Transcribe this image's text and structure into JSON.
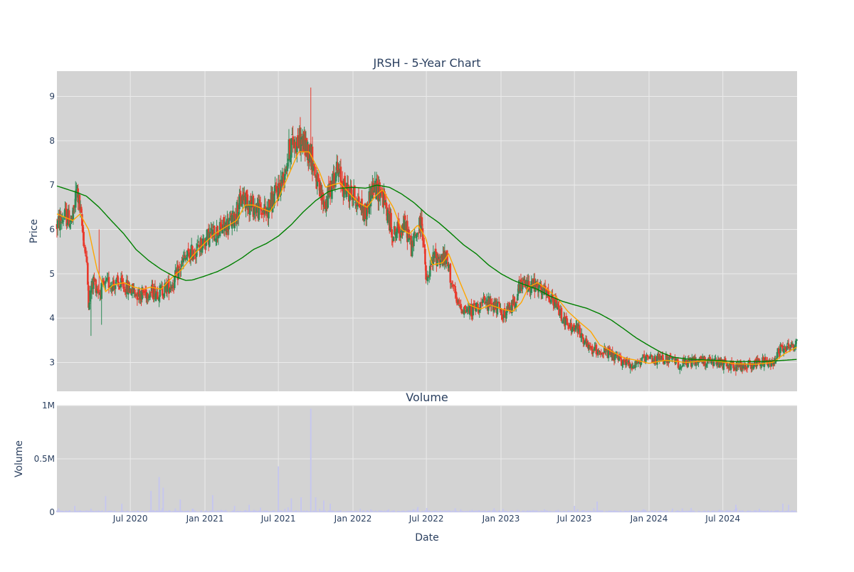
{
  "title": "JRSH - 5-Year Chart",
  "colors": {
    "plot_bg": "#d3d3d3",
    "grid": "#ebebeb",
    "candle_up": "#2e8b57",
    "candle_down": "#e8392c",
    "ma_short": "#ffa500",
    "ma_long": "#008000",
    "volume_bar": "#c5c6f0",
    "text": "#2a3f5f"
  },
  "chart_data": [
    {
      "type": "candlestick",
      "title": "JRSH - 5-Year Chart",
      "ylabel": "Price",
      "ylim": [
        2.35,
        9.57
      ],
      "yticks": [
        3,
        4,
        5,
        6,
        7,
        8,
        9
      ],
      "x_range": [
        "2020-01-02",
        "2024-12-31"
      ],
      "grid": true,
      "series": [
        {
          "name": "",
          "style": "candles",
          "anchor_points": [
            [
              "2020-01-02",
              6.1
            ],
            [
              "2020-01-20",
              6.3
            ],
            [
              "2020-02-10",
              6.2
            ],
            [
              "2020-02-20",
              6.95
            ],
            [
              "2020-03-05",
              6.0
            ],
            [
              "2020-03-15",
              5.3
            ],
            [
              "2020-03-20",
              4.4
            ],
            [
              "2020-04-01",
              4.85
            ],
            [
              "2020-04-15",
              4.6
            ],
            [
              "2020-05-10",
              4.8
            ],
            [
              "2020-06-01",
              4.75
            ],
            [
              "2020-06-20",
              4.7
            ],
            [
              "2020-07-20",
              4.55
            ],
            [
              "2020-08-20",
              4.6
            ],
            [
              "2020-09-15",
              4.6
            ],
            [
              "2020-10-15",
              4.8
            ],
            [
              "2020-11-10",
              5.3
            ],
            [
              "2020-12-15",
              5.6
            ],
            [
              "2021-01-10",
              5.85
            ],
            [
              "2021-02-10",
              6.0
            ],
            [
              "2021-03-10",
              6.2
            ],
            [
              "2021-04-05",
              6.75
            ],
            [
              "2021-05-01",
              6.5
            ],
            [
              "2021-06-01",
              6.4
            ],
            [
              "2021-06-25",
              6.8
            ],
            [
              "2021-07-10",
              7.1
            ],
            [
              "2021-08-01",
              7.95
            ],
            [
              "2021-08-25",
              8.0
            ],
            [
              "2021-09-20",
              7.7
            ],
            [
              "2021-10-10",
              6.8
            ],
            [
              "2021-10-25",
              6.55
            ],
            [
              "2021-11-20",
              7.35
            ],
            [
              "2021-12-10",
              6.95
            ],
            [
              "2022-01-10",
              6.7
            ],
            [
              "2022-02-01",
              6.3
            ],
            [
              "2022-02-15",
              6.9
            ],
            [
              "2022-03-10",
              6.9
            ],
            [
              "2022-04-10",
              5.9
            ],
            [
              "2022-05-10",
              6.1
            ],
            [
              "2022-05-25",
              5.6
            ],
            [
              "2022-06-20",
              6.2
            ],
            [
              "2022-07-01",
              4.75
            ],
            [
              "2022-07-20",
              5.4
            ],
            [
              "2022-08-20",
              5.3
            ],
            [
              "2022-09-15",
              4.3
            ],
            [
              "2022-10-15",
              4.15
            ],
            [
              "2022-11-10",
              4.3
            ],
            [
              "2022-12-10",
              4.35
            ],
            [
              "2023-01-10",
              4.05
            ],
            [
              "2023-02-01",
              4.35
            ],
            [
              "2023-02-20",
              4.75
            ],
            [
              "2023-03-20",
              4.75
            ],
            [
              "2023-04-20",
              4.55
            ],
            [
              "2023-05-20",
              4.25
            ],
            [
              "2023-06-15",
              3.8
            ],
            [
              "2023-07-10",
              3.75
            ],
            [
              "2023-08-05",
              3.3
            ],
            [
              "2023-09-10",
              3.25
            ],
            [
              "2023-10-20",
              3.05
            ],
            [
              "2023-11-20",
              2.95
            ],
            [
              "2023-12-20",
              3.05
            ],
            [
              "2024-02-10",
              3.1
            ],
            [
              "2024-03-20",
              2.95
            ],
            [
              "2024-05-01",
              3.05
            ],
            [
              "2024-06-10",
              3.0
            ],
            [
              "2024-07-10",
              2.95
            ],
            [
              "2024-08-20",
              2.9
            ],
            [
              "2024-09-20",
              3.0
            ],
            [
              "2024-11-01",
              3.0
            ],
            [
              "2024-11-20",
              3.35
            ],
            [
              "2024-12-31",
              3.4
            ]
          ]
        },
        {
          "name": "",
          "style": "line",
          "color_key": "ma_short",
          "anchor_points": [
            [
              "2020-01-02",
              6.35
            ],
            [
              "2020-02-10",
              6.2
            ],
            [
              "2020-02-28",
              6.35
            ],
            [
              "2020-03-20",
              6.0
            ],
            [
              "2020-04-10",
              5.1
            ],
            [
              "2020-05-01",
              4.6
            ],
            [
              "2020-05-20",
              4.75
            ],
            [
              "2020-06-15",
              4.8
            ],
            [
              "2020-07-10",
              4.7
            ],
            [
              "2020-08-01",
              4.65
            ],
            [
              "2020-08-20",
              4.7
            ],
            [
              "2020-09-15",
              4.65
            ],
            [
              "2020-10-10",
              4.9
            ],
            [
              "2020-11-05",
              5.1
            ],
            [
              "2020-12-01",
              5.4
            ],
            [
              "2021-01-01",
              5.7
            ],
            [
              "2021-01-25",
              5.9
            ],
            [
              "2021-02-20",
              6.05
            ],
            [
              "2021-03-20",
              6.2
            ],
            [
              "2021-04-10",
              6.55
            ],
            [
              "2021-05-01",
              6.55
            ],
            [
              "2021-06-10",
              6.4
            ],
            [
              "2021-07-01",
              6.7
            ],
            [
              "2021-07-25",
              7.2
            ],
            [
              "2021-08-20",
              7.75
            ],
            [
              "2021-09-15",
              7.75
            ],
            [
              "2021-10-10",
              7.3
            ],
            [
              "2021-10-25",
              6.95
            ],
            [
              "2021-11-10",
              7.0
            ],
            [
              "2021-12-01",
              7.05
            ],
            [
              "2021-12-20",
              6.85
            ],
            [
              "2022-01-15",
              6.6
            ],
            [
              "2022-02-05",
              6.5
            ],
            [
              "2022-02-25",
              6.75
            ],
            [
              "2022-03-15",
              6.9
            ],
            [
              "2022-04-10",
              6.5
            ],
            [
              "2022-05-01",
              6.0
            ],
            [
              "2022-05-20",
              5.9
            ],
            [
              "2022-06-10",
              6.1
            ],
            [
              "2022-06-30",
              5.8
            ],
            [
              "2022-07-15",
              5.2
            ],
            [
              "2022-08-10",
              5.25
            ],
            [
              "2022-08-25",
              5.45
            ],
            [
              "2022-09-20",
              4.85
            ],
            [
              "2022-10-15",
              4.3
            ],
            [
              "2022-11-10",
              4.2
            ],
            [
              "2022-12-05",
              4.3
            ],
            [
              "2023-01-05",
              4.2
            ],
            [
              "2023-01-30",
              4.15
            ],
            [
              "2023-02-20",
              4.35
            ],
            [
              "2023-03-10",
              4.7
            ],
            [
              "2023-04-01",
              4.8
            ],
            [
              "2023-04-25",
              4.65
            ],
            [
              "2023-05-20",
              4.45
            ],
            [
              "2023-06-15",
              4.15
            ],
            [
              "2023-07-15",
              3.9
            ],
            [
              "2023-08-10",
              3.7
            ],
            [
              "2023-09-01",
              3.4
            ],
            [
              "2023-10-01",
              3.25
            ],
            [
              "2023-11-01",
              3.1
            ],
            [
              "2023-12-01",
              3.05
            ],
            [
              "2024-01-01",
              2.98
            ],
            [
              "2024-02-10",
              3.05
            ],
            [
              "2024-04-01",
              3.0
            ],
            [
              "2024-06-01",
              3.05
            ],
            [
              "2024-08-01",
              2.97
            ],
            [
              "2024-09-20",
              2.96
            ],
            [
              "2024-11-01",
              3.0
            ],
            [
              "2024-12-01",
              3.2
            ],
            [
              "2024-12-31",
              3.35
            ]
          ]
        },
        {
          "name": "",
          "style": "line",
          "color_key": "ma_long",
          "anchor_points": [
            [
              "2020-01-02",
              6.98
            ],
            [
              "2020-02-15",
              6.85
            ],
            [
              "2020-03-15",
              6.75
            ],
            [
              "2020-04-15",
              6.5
            ],
            [
              "2020-05-15",
              6.2
            ],
            [
              "2020-06-15",
              5.9
            ],
            [
              "2020-07-15",
              5.55
            ],
            [
              "2020-08-15",
              5.3
            ],
            [
              "2020-09-15",
              5.1
            ],
            [
              "2020-10-15",
              4.95
            ],
            [
              "2020-11-15",
              4.85
            ],
            [
              "2020-12-01",
              4.86
            ],
            [
              "2021-01-01",
              4.95
            ],
            [
              "2021-02-01",
              5.05
            ],
            [
              "2021-03-01",
              5.18
            ],
            [
              "2021-04-01",
              5.35
            ],
            [
              "2021-05-01",
              5.55
            ],
            [
              "2021-06-01",
              5.68
            ],
            [
              "2021-07-01",
              5.85
            ],
            [
              "2021-08-01",
              6.1
            ],
            [
              "2021-09-01",
              6.4
            ],
            [
              "2021-10-01",
              6.65
            ],
            [
              "2021-11-01",
              6.85
            ],
            [
              "2021-12-01",
              6.93
            ],
            [
              "2022-01-01",
              6.95
            ],
            [
              "2022-02-01",
              6.93
            ],
            [
              "2022-03-01",
              7.0
            ],
            [
              "2022-04-01",
              6.95
            ],
            [
              "2022-05-01",
              6.8
            ],
            [
              "2022-06-01",
              6.6
            ],
            [
              "2022-07-01",
              6.35
            ],
            [
              "2022-08-01",
              6.15
            ],
            [
              "2022-09-01",
              5.9
            ],
            [
              "2022-10-01",
              5.65
            ],
            [
              "2022-11-01",
              5.45
            ],
            [
              "2022-12-01",
              5.2
            ],
            [
              "2023-01-01",
              5.0
            ],
            [
              "2023-02-01",
              4.85
            ],
            [
              "2023-03-01",
              4.75
            ],
            [
              "2023-04-01",
              4.65
            ],
            [
              "2023-05-01",
              4.5
            ],
            [
              "2023-06-01",
              4.38
            ],
            [
              "2023-07-01",
              4.3
            ],
            [
              "2023-08-01",
              4.22
            ],
            [
              "2023-09-01",
              4.1
            ],
            [
              "2023-10-01",
              3.95
            ],
            [
              "2023-11-01",
              3.75
            ],
            [
              "2023-12-01",
              3.55
            ],
            [
              "2024-01-01",
              3.38
            ],
            [
              "2024-02-01",
              3.22
            ],
            [
              "2024-03-01",
              3.12
            ],
            [
              "2024-04-01",
              3.08
            ],
            [
              "2024-06-01",
              3.05
            ],
            [
              "2024-08-01",
              3.02
            ],
            [
              "2024-10-01",
              3.02
            ],
            [
              "2024-12-01",
              3.05
            ],
            [
              "2024-12-31",
              3.07
            ]
          ]
        }
      ],
      "spikes": [
        [
          "2020-03-25",
          3.6
        ],
        [
          "2020-04-15",
          6.0
        ],
        [
          "2020-04-20",
          3.85
        ],
        [
          "2021-09-18",
          9.2
        ],
        [
          "2023-02-15",
          4.95
        ],
        [
          "2023-11-15",
          2.75
        ],
        [
          "2024-08-01",
          2.7
        ]
      ]
    },
    {
      "type": "bar",
      "title": "Volume",
      "xlabel": "Date",
      "ylabel": "Volume",
      "ylim": [
        0,
        1000000
      ],
      "yticks": [
        {
          "value": 0,
          "label": "0"
        },
        {
          "value": 500000,
          "label": "0.5M"
        },
        {
          "value": 1000000,
          "label": "1M"
        }
      ],
      "grid": true,
      "baseline_range": [
        3000,
        18000
      ],
      "spikes": [
        [
          "2020-02-15",
          60000
        ],
        [
          "2020-05-01",
          150000
        ],
        [
          "2020-06-10",
          80000
        ],
        [
          "2020-08-20",
          200000
        ],
        [
          "2020-09-10",
          330000
        ],
        [
          "2020-09-20",
          230000
        ],
        [
          "2020-11-01",
          120000
        ],
        [
          "2021-01-20",
          160000
        ],
        [
          "2021-03-15",
          60000
        ],
        [
          "2021-04-20",
          70000
        ],
        [
          "2021-07-01",
          430000
        ],
        [
          "2021-08-01",
          130000
        ],
        [
          "2021-08-25",
          140000
        ],
        [
          "2021-09-18",
          970000
        ],
        [
          "2021-10-01",
          140000
        ],
        [
          "2021-10-20",
          110000
        ],
        [
          "2021-11-05",
          80000
        ],
        [
          "2022-06-10",
          50000
        ],
        [
          "2022-07-01",
          40000
        ],
        [
          "2023-07-01",
          60000
        ],
        [
          "2023-08-25",
          100000
        ],
        [
          "2024-08-01",
          70000
        ],
        [
          "2024-11-25",
          80000
        ],
        [
          "2024-12-10",
          70000
        ]
      ]
    }
  ],
  "x_axis": {
    "label": "Date",
    "ticks": [
      {
        "date": "2020-07-01",
        "label": "Jul 2020"
      },
      {
        "date": "2021-01-01",
        "label": "Jan 2021"
      },
      {
        "date": "2021-07-01",
        "label": "Jul 2021"
      },
      {
        "date": "2022-01-01",
        "label": "Jan 2022"
      },
      {
        "date": "2022-07-01",
        "label": "Jul 2022"
      },
      {
        "date": "2023-01-01",
        "label": "Jan 2023"
      },
      {
        "date": "2023-07-01",
        "label": "Jul 2023"
      },
      {
        "date": "2024-01-01",
        "label": "Jan 2024"
      },
      {
        "date": "2024-07-01",
        "label": "Jul 2024"
      }
    ]
  }
}
